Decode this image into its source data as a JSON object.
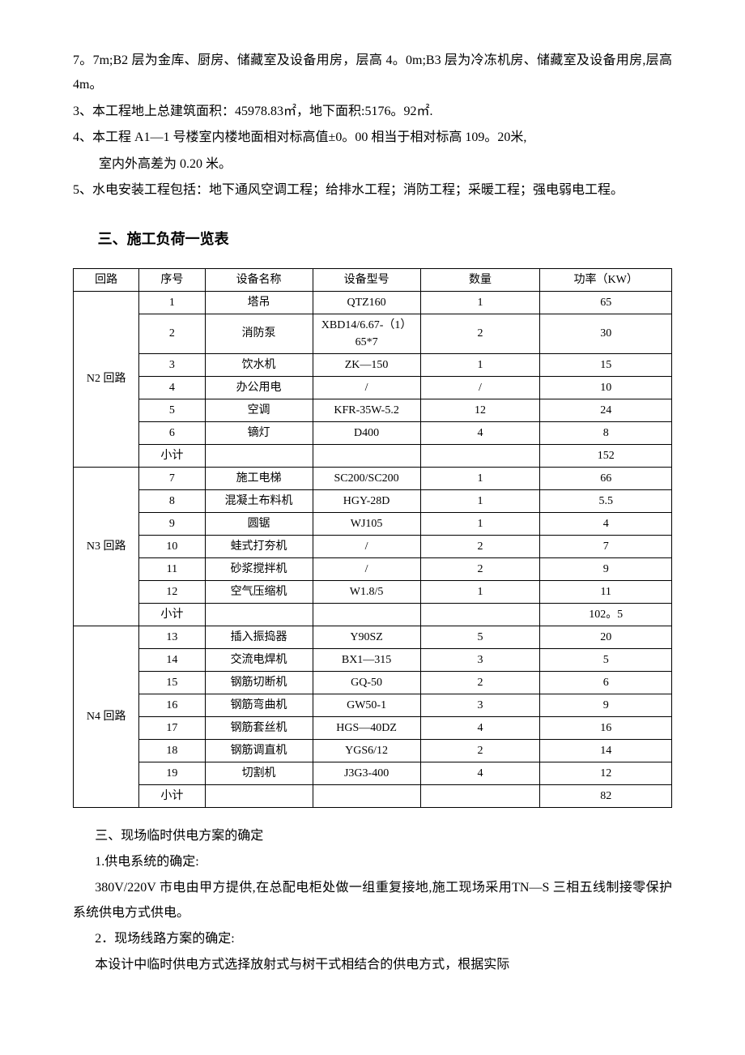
{
  "intro": {
    "p1": "7。7m;B2 层为金库、厨房、储藏室及设备用房，层高 4。0m;B3 层为冷冻机房、储藏室及设备用房,层高 4m。",
    "p2": "3、本工程地上总建筑面积：45978.83㎡，地下面积:5176。92㎡.",
    "p3": "4、本工程 A1—1 号楼室内楼地面相对标高值±0。00 相当于相对标高 109。20米,",
    "p4": "室内外高差为 0.20 米。",
    "p5": "5、水电安装工程包括：地下通风空调工程；给排水工程；消防工程；采暖工程；强电弱电工程。"
  },
  "section_title": "三、施工负荷一览表",
  "table": {
    "headers": {
      "circuit": "回路",
      "seq": "序号",
      "name": "设备名称",
      "model": "设备型号",
      "qty": "数量",
      "power": "功率（KW）"
    },
    "groups": [
      {
        "circuit": "N2 回路",
        "rows": [
          {
            "seq": "1",
            "name": "塔吊",
            "model": "QTZ160",
            "qty": "1",
            "power": "65"
          },
          {
            "seq": "2",
            "name": "消防泵",
            "model": "XBD14/6.67-（1）65*7",
            "qty": "2",
            "power": "30"
          },
          {
            "seq": "3",
            "name": "饮水机",
            "model": "ZK—150",
            "qty": "1",
            "power": "15"
          },
          {
            "seq": "4",
            "name": "办公用电",
            "model": "/",
            "qty": "/",
            "power": "10"
          },
          {
            "seq": "5",
            "name": "空调",
            "model": "KFR-35W-5.2",
            "qty": "12",
            "power": "24"
          },
          {
            "seq": "6",
            "name": "镝灯",
            "model": "D400",
            "qty": "4",
            "power": "8"
          }
        ],
        "subtotal": {
          "seq": "小计",
          "name": "",
          "model": "",
          "qty": "",
          "power": "152"
        }
      },
      {
        "circuit": "N3 回路",
        "rows": [
          {
            "seq": "7",
            "name": "施工电梯",
            "model": "SC200/SC200",
            "qty": "1",
            "power": "66"
          },
          {
            "seq": "8",
            "name": "混凝土布料机",
            "model": "HGY-28D",
            "qty": "1",
            "power": "5.5"
          },
          {
            "seq": "9",
            "name": "圆锯",
            "model": "WJ105",
            "qty": "1",
            "power": "4"
          },
          {
            "seq": "10",
            "name": "蛙式打夯机",
            "model": "/",
            "qty": "2",
            "power": "7"
          },
          {
            "seq": "11",
            "name": "砂浆搅拌机",
            "model": "/",
            "qty": "2",
            "power": "9"
          },
          {
            "seq": "12",
            "name": "空气压缩机",
            "model": "W1.8/5",
            "qty": "1",
            "power": "11"
          }
        ],
        "subtotal": {
          "seq": "小计",
          "name": "",
          "model": "",
          "qty": "",
          "power": "102。5"
        }
      },
      {
        "circuit": "N4 回路",
        "rows": [
          {
            "seq": "13",
            "name": "插入振捣器",
            "model": "Y90SZ",
            "qty": "5",
            "power": "20"
          },
          {
            "seq": "14",
            "name": "交流电焊机",
            "model": "BX1—315",
            "qty": "3",
            "power": "5"
          },
          {
            "seq": "15",
            "name": "钢筋切断机",
            "model": "GQ-50",
            "qty": "2",
            "power": "6"
          },
          {
            "seq": "16",
            "name": "钢筋弯曲机",
            "model": "GW50-1",
            "qty": "3",
            "power": "9"
          },
          {
            "seq": "17",
            "name": "钢筋套丝机",
            "model": "HGS—40DZ",
            "qty": "4",
            "power": "16"
          },
          {
            "seq": "18",
            "name": "钢筋调直机",
            "model": "YGS6/12",
            "qty": "2",
            "power": "14"
          },
          {
            "seq": "19",
            "name": "切割机",
            "model": "J3G3-400",
            "qty": "4",
            "power": "12"
          }
        ],
        "subtotal": {
          "seq": "小计",
          "name": "",
          "model": "",
          "qty": "",
          "power": "82"
        }
      }
    ]
  },
  "post": {
    "p1": "三、现场临时供电方案的确定",
    "p2": "1.供电系统的确定:",
    "p3": "380V/220V 市电由甲方提供,在总配电柜处做一组重复接地,施工现场采用TN—S 三相五线制接零保护系统供电方式供电。",
    "p4": "2．现场线路方案的确定:",
    "p5": "本设计中临时供电方式选择放射式与树干式相结合的供电方式，根据实际"
  }
}
